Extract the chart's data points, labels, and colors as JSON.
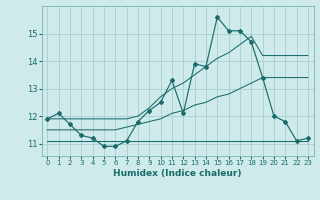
{
  "xlabel": "Humidex (Indice chaleur)",
  "bg_color": "#ceeaea",
  "grid_color": "#aacfcf",
  "line_color": "#1a6b6b",
  "x_values": [
    0,
    1,
    2,
    3,
    4,
    5,
    6,
    7,
    8,
    9,
    10,
    11,
    12,
    13,
    14,
    15,
    16,
    17,
    18,
    19,
    20,
    21,
    22,
    23
  ],
  "y_main": [
    11.9,
    12.1,
    11.7,
    11.3,
    11.2,
    10.9,
    10.9,
    11.1,
    11.8,
    12.2,
    12.5,
    13.3,
    12.1,
    13.9,
    13.8,
    15.6,
    15.1,
    15.1,
    14.7,
    13.4,
    12.0,
    11.8,
    11.1,
    11.2
  ],
  "y_upper": [
    11.9,
    11.9,
    11.9,
    11.9,
    11.9,
    11.9,
    11.9,
    11.9,
    12.0,
    12.3,
    12.7,
    13.0,
    13.2,
    13.5,
    13.8,
    14.1,
    14.3,
    14.6,
    14.9,
    14.2,
    14.2,
    14.2,
    14.2,
    14.2
  ],
  "y_lower": [
    11.1,
    11.1,
    11.1,
    11.1,
    11.1,
    11.1,
    11.1,
    11.1,
    11.1,
    11.1,
    11.1,
    11.1,
    11.1,
    11.1,
    11.1,
    11.1,
    11.1,
    11.1,
    11.1,
    11.1,
    11.1,
    11.1,
    11.1,
    11.1
  ],
  "y_mid": [
    11.5,
    11.5,
    11.5,
    11.5,
    11.5,
    11.5,
    11.5,
    11.6,
    11.7,
    11.8,
    11.9,
    12.1,
    12.2,
    12.4,
    12.5,
    12.7,
    12.8,
    13.0,
    13.2,
    13.4,
    13.4,
    13.4,
    13.4,
    13.4
  ],
  "ylim": [
    10.55,
    16.0
  ],
  "yticks": [
    11,
    12,
    13,
    14,
    15
  ],
  "xticks": [
    0,
    1,
    2,
    3,
    4,
    5,
    6,
    7,
    8,
    9,
    10,
    11,
    12,
    13,
    14,
    15,
    16,
    17,
    18,
    19,
    20,
    21,
    22,
    23
  ]
}
